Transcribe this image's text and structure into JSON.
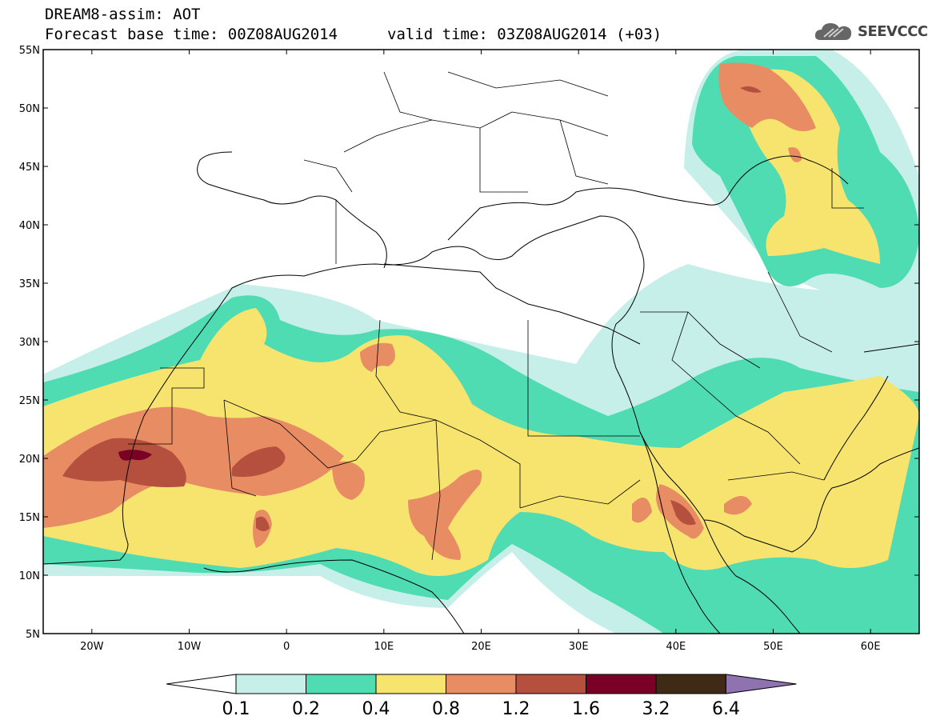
{
  "header": {
    "title_line1": "DREAM8-assim: AOT",
    "base_time": "Forecast base time: 00Z08AUG2014",
    "valid_time": "valid time: 03Z08AUG2014 (+03)",
    "logo_text": "SEEVCCC",
    "logo_icon": "cloud-icon"
  },
  "map": {
    "lon_range": [
      -25,
      65
    ],
    "lat_range": [
      5,
      55
    ],
    "lon_ticks": [
      {
        "v": -20,
        "label": "20W"
      },
      {
        "v": -10,
        "label": "10W"
      },
      {
        "v": 0,
        "label": "0"
      },
      {
        "v": 10,
        "label": "10E"
      },
      {
        "v": 20,
        "label": "20E"
      },
      {
        "v": 30,
        "label": "30E"
      },
      {
        "v": 40,
        "label": "40E"
      },
      {
        "v": 50,
        "label": "50E"
      },
      {
        "v": 60,
        "label": "60E"
      }
    ],
    "lat_ticks": [
      {
        "v": 5,
        "label": "5N"
      },
      {
        "v": 10,
        "label": "10N"
      },
      {
        "v": 15,
        "label": "15N"
      },
      {
        "v": 20,
        "label": "20N"
      },
      {
        "v": 25,
        "label": "25N"
      },
      {
        "v": 30,
        "label": "30N"
      },
      {
        "v": 35,
        "label": "35N"
      },
      {
        "v": 40,
        "label": "40N"
      },
      {
        "v": 45,
        "label": "45N"
      },
      {
        "v": 50,
        "label": "50N"
      },
      {
        "v": 55,
        "label": "55N"
      }
    ]
  },
  "colorbar": {
    "levels": [
      "0.1",
      "0.2",
      "0.4",
      "0.8",
      "1.2",
      "1.6",
      "3.2",
      "6.4"
    ],
    "colors": [
      "#c6efe9",
      "#4fdcb3",
      "#f6e46f",
      "#e88c64",
      "#b5503f",
      "#7a0026",
      "#3f2a15"
    ],
    "under_color": "#ffffff",
    "over_color": "#8f72b0"
  }
}
